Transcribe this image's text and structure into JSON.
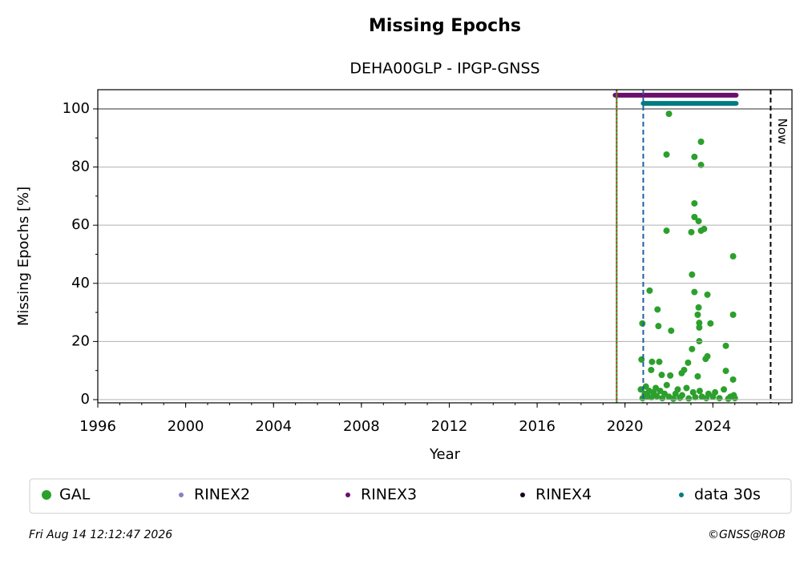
{
  "chart_data": {
    "type": "scatter",
    "title": "Missing Epochs",
    "subtitle": "DEHA00GLP - IPGP-GNSS",
    "x_label": "Year",
    "y_label": "Missing Epochs [%]",
    "xlim": [
      1996,
      2027.6
    ],
    "xticks": [
      1996,
      2000,
      2004,
      2008,
      2012,
      2016,
      2020,
      2024
    ],
    "ylim": [
      -1.1,
      106.6
    ],
    "yticks": [
      0,
      20,
      40,
      60,
      80,
      100
    ],
    "grid": true,
    "hline": 100,
    "vlines": [
      {
        "x": 2019.62,
        "color": "#2ca02c",
        "style": "solid"
      },
      {
        "x": 2019.62,
        "color": "#d62728",
        "style": "dotted"
      },
      {
        "x": 2020.83,
        "color": "#1f5fa0",
        "style": "dashed"
      },
      {
        "x": 2026.63,
        "color": "#000000",
        "style": "dashed",
        "label": "Now"
      }
    ],
    "series": [
      {
        "name": "GAL",
        "color": "#2ca02c",
        "kind": "points",
        "x": [
          2020.79,
          2020.75,
          2021.12,
          2021.48,
          2021.52,
          2021.23,
          2021.56,
          2021.89,
          2021.89,
          2022.0,
          2022.1,
          2023.16,
          2023.05,
          2023.16,
          2023.16,
          2023.46,
          2023.46,
          2023.35,
          2023.16,
          2023.02,
          2023.46,
          2023.6,
          2023.75,
          2023.35,
          2023.31,
          2023.38,
          2023.38,
          2023.38,
          2023.89,
          2023.05,
          2024.59,
          2024.92,
          2024.92,
          2024.59,
          2024.92,
          2022.87,
          2022.69,
          2023.75,
          2023.67,
          2023.31,
          2022.06,
          2021.67,
          2021.19,
          2022.58,
          2020.72,
          2020.8,
          2020.9,
          2020.95,
          2021.05,
          2021.1,
          2021.2,
          2021.3,
          2021.4,
          2021.45,
          2021.6,
          2021.7,
          2021.8,
          2021.9,
          2022.0,
          2022.2,
          2022.3,
          2022.4,
          2022.5,
          2022.6,
          2022.8,
          2022.9,
          2023.1,
          2023.2,
          2023.4,
          2023.5,
          2023.7,
          2023.8,
          2024.0,
          2024.1,
          2024.3,
          2024.5,
          2024.7,
          2024.8,
          2024.95,
          2025.0
        ],
        "values": [
          26.2,
          13.8,
          37.5,
          31,
          25.3,
          13,
          13,
          84.3,
          58.1,
          98.3,
          23.7,
          67.5,
          43,
          37,
          83.5,
          88.7,
          80.7,
          61.4,
          62.8,
          57.6,
          58.1,
          58.7,
          36.1,
          31.7,
          29.2,
          26.4,
          24.8,
          20.1,
          26.2,
          17.4,
          18.5,
          49.3,
          29.2,
          9.9,
          6.9,
          12.7,
          10.2,
          14.9,
          14,
          8,
          8.3,
          8.5,
          10.2,
          9.1,
          3.5,
          0.5,
          2,
          4.5,
          1,
          3,
          0.8,
          2.5,
          4,
          1.2,
          3,
          0.5,
          2,
          5,
          1,
          0.3,
          2,
          3.5,
          0.6,
          1.5,
          4,
          0.4,
          2.5,
          0.8,
          3,
          1,
          0.5,
          2,
          1,
          2.5,
          0.5,
          3.5,
          0.3,
          1,
          1.5,
          0.5
        ]
      },
      {
        "name": "RINEX2",
        "color": "#8c7fbf",
        "kind": "band",
        "x": [],
        "values": []
      },
      {
        "name": "RINEX3",
        "color": "#6a0f6e",
        "kind": "band",
        "x": [
          2019.55,
          2025.06
        ],
        "values": [
          104.7,
          104.7
        ]
      },
      {
        "name": "RINEX4",
        "color": "#1a0020",
        "kind": "band",
        "x": [],
        "values": []
      },
      {
        "name": "data 30s",
        "color": "#007b80",
        "kind": "band",
        "x": [
          2020.83,
          2025.06
        ],
        "values": [
          101.9,
          101.9
        ]
      }
    ],
    "footer_left": "Fri Aug 14 12:12:47 2026",
    "footer_right": "©GNSS@ROB"
  }
}
